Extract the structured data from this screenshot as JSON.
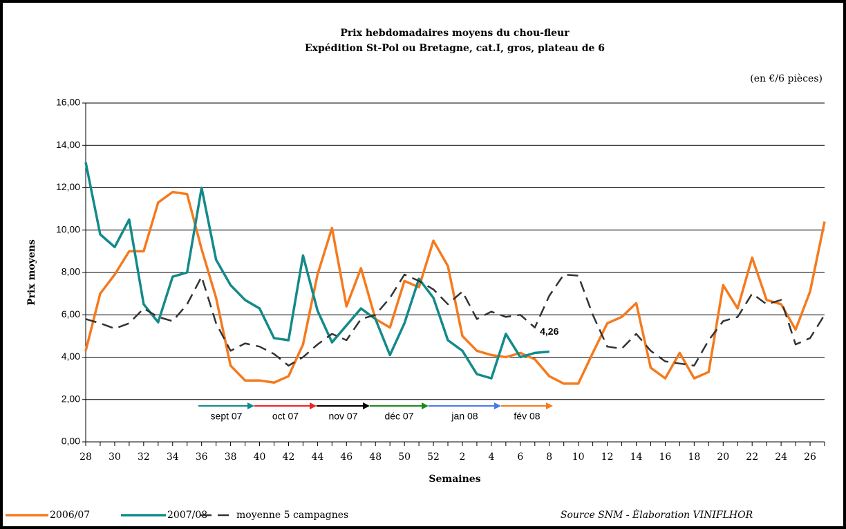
{
  "chart_data": {
    "type": "line",
    "title": "Prix hebdomadaires moyens du chou-fleur",
    "subtitle": "Expédition St-Pol ou Bretagne, cat.I, gros, plateau de 6",
    "unit_note": "(en €/6 pièces)",
    "x_label": "Semaines",
    "y_label": "Prix moyens",
    "source": "Source SNM - Èlaboration VINIFLHOR",
    "categories": [
      "28",
      null,
      "30",
      null,
      "32",
      null,
      "34",
      null,
      "36",
      null,
      "38",
      null,
      "40",
      null,
      "42",
      null,
      "44",
      null,
      "46",
      null,
      "48",
      null,
      "50",
      null,
      "52",
      null,
      "2",
      null,
      "4",
      null,
      "6",
      null,
      "8",
      null,
      "10",
      null,
      "12",
      null,
      "14",
      null,
      "16",
      null,
      "18",
      null,
      "20",
      null,
      "22",
      null,
      "24",
      null,
      "26",
      null
    ],
    "ylim": [
      0,
      16
    ],
    "yticks": [
      {
        "value": 0,
        "label": "0,00"
      },
      {
        "value": 2,
        "label": "2,00"
      },
      {
        "value": 4,
        "label": "4,00"
      },
      {
        "value": 6,
        "label": "6,00"
      },
      {
        "value": 8,
        "label": "8,00"
      },
      {
        "value": 10,
        "label": "10,00"
      },
      {
        "value": 12,
        "label": "12,00"
      },
      {
        "value": 14,
        "label": "14,00"
      },
      {
        "value": 16,
        "label": "16,00"
      }
    ],
    "grid": true,
    "legend": "bottom-left",
    "series": [
      {
        "name": "2006/07",
        "color": "#f57a1e",
        "linestyle": "solid",
        "values": [
          4.3,
          7.0,
          7.9,
          9.0,
          9.0,
          11.3,
          11.8,
          11.7,
          9.1,
          6.8,
          3.6,
          2.9,
          2.9,
          2.8,
          3.1,
          4.6,
          7.9,
          10.1,
          6.4,
          8.2,
          5.8,
          5.4,
          7.6,
          7.3,
          9.5,
          8.3,
          5.0,
          4.3,
          4.1,
          4.0,
          4.2,
          3.9,
          3.1,
          2.75,
          2.75,
          4.2,
          5.6,
          5.9,
          6.55,
          3.5,
          3.0,
          4.2,
          3.0,
          3.3,
          7.4,
          6.3,
          8.7,
          6.7,
          6.5,
          5.3,
          7.1,
          10.4
        ]
      },
      {
        "name": "2007/08",
        "color": "#138a8a",
        "linestyle": "solid",
        "values": [
          13.2,
          9.8,
          9.2,
          10.5,
          6.5,
          5.65,
          7.8,
          8.0,
          12.0,
          8.6,
          7.4,
          6.7,
          6.3,
          4.9,
          4.8,
          8.8,
          6.2,
          4.7,
          5.5,
          6.3,
          5.8,
          4.1,
          5.6,
          7.7,
          6.8,
          4.8,
          4.3,
          3.2,
          3.0,
          5.1,
          4.0,
          4.2,
          4.26,
          null,
          null,
          null,
          null,
          null,
          null,
          null,
          null,
          null,
          null,
          null,
          null,
          null,
          null,
          null,
          null,
          null,
          null,
          null
        ],
        "value_labels": [
          null,
          null,
          null,
          null,
          null,
          null,
          null,
          null,
          null,
          null,
          null,
          null,
          null,
          null,
          null,
          null,
          null,
          null,
          null,
          null,
          null,
          null,
          null,
          null,
          null,
          null,
          null,
          null,
          null,
          null,
          null,
          null,
          "4,26",
          null,
          null,
          null,
          null,
          null,
          null,
          null,
          null,
          null,
          null,
          null,
          null,
          null,
          null,
          null,
          null,
          null,
          null,
          null
        ]
      },
      {
        "name": "moyenne 5 campagnes",
        "color": "#333333",
        "linestyle": "dashed",
        "values": [
          5.8,
          5.6,
          5.35,
          5.6,
          6.3,
          5.9,
          5.7,
          6.5,
          7.8,
          5.6,
          4.3,
          4.65,
          4.5,
          4.15,
          3.6,
          4.0,
          4.6,
          5.1,
          4.8,
          5.8,
          6.0,
          6.8,
          7.9,
          7.6,
          7.2,
          6.5,
          7.1,
          5.8,
          6.15,
          5.9,
          6.0,
          5.4,
          6.9,
          7.9,
          7.85,
          6.0,
          4.5,
          4.4,
          5.1,
          4.3,
          3.8,
          3.7,
          3.6,
          4.8,
          5.7,
          5.9,
          7.0,
          6.5,
          6.7,
          4.6,
          4.9,
          6.0
        ]
      }
    ],
    "month_arrows": [
      {
        "label": "sept 07",
        "color": "#138a8a"
      },
      {
        "label": "oct 07",
        "color": "#ee2222"
      },
      {
        "label": "nov 07",
        "color": "#000000"
      },
      {
        "label": "déc 07",
        "color": "#1a8a1a"
      },
      {
        "label": "jan 08",
        "color": "#4a7ae8"
      },
      {
        "label": "fév 08",
        "color": "#f57a1e"
      }
    ]
  }
}
